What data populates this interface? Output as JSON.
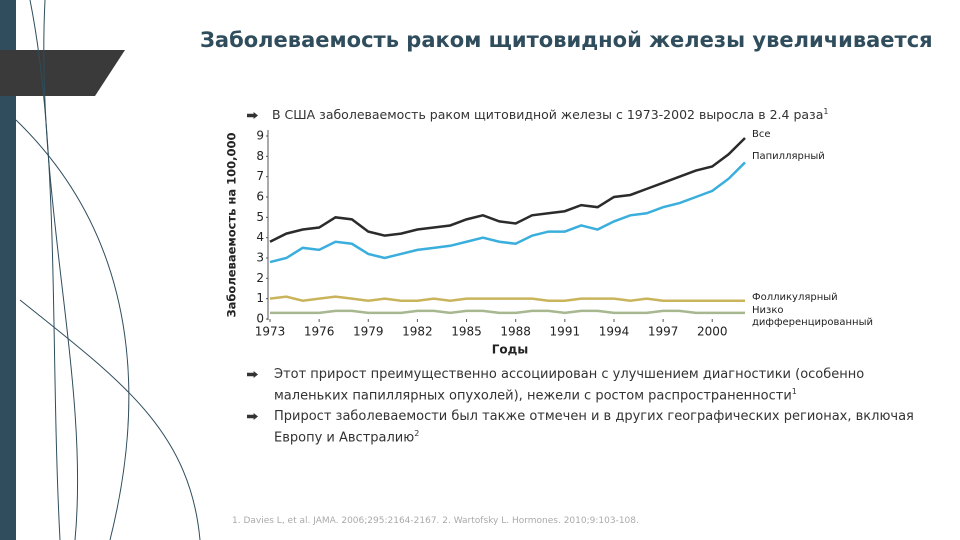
{
  "title": "Заболеваемость раком щитовидной железы увеличивается",
  "bullets": [
    {
      "text": "В США заболеваемость раком щитовидной железы с 1973-2002 выросла в 2.4 раза",
      "sup": "1"
    },
    {
      "text": "Этот прирост преимущественно ассоциирован с улучшением диагностики (особенно маленьких папиллярных опухолей), нежели с ростом распространенности",
      "sup": "1"
    },
    {
      "text": "Прирост заболеваемости был также отмечен и в других географических регионах, включая Европу и Австралию",
      "sup": "2"
    }
  ],
  "footnote": "1. Davies L, et al. JAMA. 2006;295:2164-2167. 2. Wartofsky L. Hormones. 2010;9:103-108.",
  "chart_data": {
    "type": "line",
    "x_label": "Годы",
    "y_label": "Заболеваемость на 100,000",
    "x": [
      1973,
      1974,
      1975,
      1976,
      1977,
      1978,
      1979,
      1980,
      1981,
      1982,
      1983,
      1984,
      1985,
      1986,
      1987,
      1988,
      1989,
      1990,
      1991,
      1992,
      1993,
      1994,
      1995,
      1996,
      1997,
      1998,
      1999,
      2000,
      2001,
      2002
    ],
    "xlim": [
      1973,
      2002
    ],
    "xticks": [
      1973,
      1976,
      1979,
      1982,
      1985,
      1988,
      1991,
      1994,
      1997,
      2000
    ],
    "ylim": [
      0,
      9
    ],
    "yticks": [
      0,
      1,
      2,
      3,
      4,
      5,
      6,
      7,
      8,
      9
    ],
    "grid": false,
    "series": [
      {
        "name": "Все",
        "color": "#2b2b2b",
        "values": [
          3.8,
          4.2,
          4.4,
          4.5,
          5.0,
          4.9,
          4.3,
          4.1,
          4.2,
          4.4,
          4.5,
          4.6,
          4.9,
          5.1,
          4.8,
          4.7,
          5.1,
          5.2,
          5.3,
          5.6,
          5.5,
          6.0,
          6.1,
          6.4,
          6.7,
          7.0,
          7.3,
          7.5,
          8.1,
          8.9
        ]
      },
      {
        "name": "Папиллярный",
        "color": "#3aaedc",
        "values": [
          2.8,
          3.0,
          3.5,
          3.4,
          3.8,
          3.7,
          3.2,
          3.0,
          3.2,
          3.4,
          3.5,
          3.6,
          3.8,
          4.0,
          3.8,
          3.7,
          4.1,
          4.3,
          4.3,
          4.6,
          4.4,
          4.8,
          5.1,
          5.2,
          5.5,
          5.7,
          6.0,
          6.3,
          6.9,
          7.7
        ]
      },
      {
        "name": "Фолликулярный",
        "color": "#c9b45c",
        "values": [
          1.0,
          1.1,
          0.9,
          1.0,
          1.1,
          1.0,
          0.9,
          1.0,
          0.9,
          0.9,
          1.0,
          0.9,
          1.0,
          1.0,
          1.0,
          1.0,
          1.0,
          0.9,
          0.9,
          1.0,
          1.0,
          1.0,
          0.9,
          1.0,
          0.9,
          0.9,
          0.9,
          0.9,
          0.9,
          0.9
        ]
      },
      {
        "name": "Низко дифференцированный",
        "color": "#a7b78f",
        "values": [
          0.3,
          0.3,
          0.3,
          0.3,
          0.4,
          0.4,
          0.3,
          0.3,
          0.3,
          0.4,
          0.4,
          0.3,
          0.4,
          0.4,
          0.3,
          0.3,
          0.4,
          0.4,
          0.3,
          0.4,
          0.4,
          0.3,
          0.3,
          0.3,
          0.4,
          0.4,
          0.3,
          0.3,
          0.3,
          0.3
        ]
      }
    ]
  }
}
